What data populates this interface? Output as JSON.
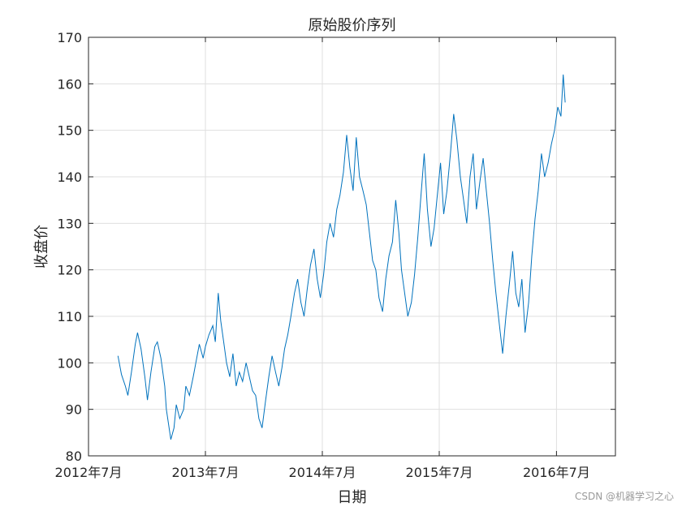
{
  "chart_data": {
    "type": "line",
    "title": "原始股价序列",
    "xlabel": "日期",
    "ylabel": "收盘价",
    "ylim": [
      80,
      170
    ],
    "yticks": [
      80,
      90,
      100,
      110,
      120,
      130,
      140,
      150,
      160,
      170
    ],
    "xticks": [
      {
        "label": "2012年7月",
        "date": "2012-07-01"
      },
      {
        "label": "2013年7月",
        "date": "2013-07-01"
      },
      {
        "label": "2014年7月",
        "date": "2014-07-01"
      },
      {
        "label": "2015年7月",
        "date": "2015-07-01"
      },
      {
        "label": "2016年7月",
        "date": "2016-07-01"
      }
    ],
    "xlim": [
      "2012-07-01",
      "2017-01-01"
    ],
    "grid": true,
    "color": "#0072BD",
    "series": [
      {
        "points": [
          [
            "2012-10-01",
            101.5
          ],
          [
            "2012-10-12",
            97.5
          ],
          [
            "2012-10-24",
            95.0
          ],
          [
            "2012-11-01",
            93.0
          ],
          [
            "2012-11-12",
            98.0
          ],
          [
            "2012-11-24",
            104.0
          ],
          [
            "2012-12-01",
            106.5
          ],
          [
            "2012-12-12",
            103.0
          ],
          [
            "2012-12-24",
            97.0
          ],
          [
            "2013-01-01",
            92.0
          ],
          [
            "2013-01-12",
            98.0
          ],
          [
            "2013-01-24",
            103.5
          ],
          [
            "2013-02-01",
            104.5
          ],
          [
            "2013-02-12",
            101.0
          ],
          [
            "2013-02-24",
            95.0
          ],
          [
            "2013-03-01",
            90.0
          ],
          [
            "2013-03-15",
            83.5
          ],
          [
            "2013-03-25",
            86.0
          ],
          [
            "2013-04-01",
            91.0
          ],
          [
            "2013-04-12",
            88.0
          ],
          [
            "2013-04-24",
            90.0
          ],
          [
            "2013-05-01",
            95.0
          ],
          [
            "2013-05-12",
            93.0
          ],
          [
            "2013-05-24",
            97.0
          ],
          [
            "2013-06-01",
            100.0
          ],
          [
            "2013-06-12",
            104.0
          ],
          [
            "2013-06-24",
            101.0
          ],
          [
            "2013-07-01",
            103.5
          ],
          [
            "2013-07-12",
            106.0
          ],
          [
            "2013-07-24",
            108.0
          ],
          [
            "2013-08-01",
            104.5
          ],
          [
            "2013-08-10",
            115.0
          ],
          [
            "2013-08-18",
            109.0
          ],
          [
            "2013-08-28",
            104.0
          ],
          [
            "2013-09-05",
            100.0
          ],
          [
            "2013-09-15",
            97.0
          ],
          [
            "2013-09-25",
            102.0
          ],
          [
            "2013-10-05",
            95.0
          ],
          [
            "2013-10-15",
            98.0
          ],
          [
            "2013-10-25",
            96.0
          ],
          [
            "2013-11-05",
            100.0
          ],
          [
            "2013-11-15",
            97.0
          ],
          [
            "2013-11-25",
            94.0
          ],
          [
            "2013-12-05",
            93.0
          ],
          [
            "2013-12-15",
            88.0
          ],
          [
            "2013-12-25",
            86.0
          ],
          [
            "2014-01-05",
            92.0
          ],
          [
            "2014-01-15",
            97.0
          ],
          [
            "2014-01-25",
            101.5
          ],
          [
            "2014-02-05",
            98.0
          ],
          [
            "2014-02-15",
            95.0
          ],
          [
            "2014-02-25",
            99.0
          ],
          [
            "2014-03-05",
            103.0
          ],
          [
            "2014-03-15",
            106.0
          ],
          [
            "2014-03-25",
            110.0
          ],
          [
            "2014-04-05",
            115.0
          ],
          [
            "2014-04-15",
            118.0
          ],
          [
            "2014-04-25",
            113.0
          ],
          [
            "2014-05-05",
            110.0
          ],
          [
            "2014-05-15",
            116.0
          ],
          [
            "2014-05-25",
            121.0
          ],
          [
            "2014-06-05",
            124.5
          ],
          [
            "2014-06-15",
            118.0
          ],
          [
            "2014-06-25",
            114.0
          ],
          [
            "2014-07-05",
            119.0
          ],
          [
            "2014-07-15",
            126.0
          ],
          [
            "2014-07-25",
            130.0
          ],
          [
            "2014-08-05",
            127.0
          ],
          [
            "2014-08-15",
            133.0
          ],
          [
            "2014-08-25",
            136.0
          ],
          [
            "2014-09-05",
            141.0
          ],
          [
            "2014-09-15",
            149.0
          ],
          [
            "2014-09-25",
            142.0
          ],
          [
            "2014-10-05",
            137.0
          ],
          [
            "2014-10-15",
            148.5
          ],
          [
            "2014-10-25",
            140.0
          ],
          [
            "2014-11-05",
            137.0
          ],
          [
            "2014-11-15",
            134.0
          ],
          [
            "2014-11-25",
            128.0
          ],
          [
            "2014-12-05",
            122.0
          ],
          [
            "2014-12-15",
            120.0
          ],
          [
            "2014-12-25",
            114.0
          ],
          [
            "2015-01-05",
            111.0
          ],
          [
            "2015-01-15",
            118.0
          ],
          [
            "2015-01-25",
            123.0
          ],
          [
            "2015-02-05",
            126.0
          ],
          [
            "2015-02-15",
            135.0
          ],
          [
            "2015-02-25",
            128.0
          ],
          [
            "2015-03-05",
            120.0
          ],
          [
            "2015-03-15",
            115.0
          ],
          [
            "2015-03-25",
            110.0
          ],
          [
            "2015-04-05",
            113.0
          ],
          [
            "2015-04-15",
            119.0
          ],
          [
            "2015-04-25",
            127.0
          ],
          [
            "2015-05-05",
            136.0
          ],
          [
            "2015-05-15",
            145.0
          ],
          [
            "2015-05-25",
            133.0
          ],
          [
            "2015-06-05",
            125.0
          ],
          [
            "2015-06-15",
            129.0
          ],
          [
            "2015-06-25",
            136.0
          ],
          [
            "2015-07-05",
            143.0
          ],
          [
            "2015-07-15",
            132.0
          ],
          [
            "2015-07-25",
            137.0
          ],
          [
            "2015-08-05",
            145.0
          ],
          [
            "2015-08-15",
            153.5
          ],
          [
            "2015-08-25",
            148.0
          ],
          [
            "2015-09-05",
            140.0
          ],
          [
            "2015-09-15",
            135.0
          ],
          [
            "2015-09-25",
            130.0
          ],
          [
            "2015-10-05",
            140.0
          ],
          [
            "2015-10-15",
            145.0
          ],
          [
            "2015-10-25",
            133.0
          ],
          [
            "2015-11-05",
            139.0
          ],
          [
            "2015-11-15",
            144.0
          ],
          [
            "2015-11-25",
            137.0
          ],
          [
            "2015-12-05",
            130.0
          ],
          [
            "2015-12-15",
            122.0
          ],
          [
            "2015-12-25",
            115.0
          ],
          [
            "2016-01-05",
            108.0
          ],
          [
            "2016-01-15",
            102.0
          ],
          [
            "2016-01-25",
            110.0
          ],
          [
            "2016-02-05",
            117.0
          ],
          [
            "2016-02-15",
            124.0
          ],
          [
            "2016-02-25",
            115.0
          ],
          [
            "2016-03-05",
            112.0
          ],
          [
            "2016-03-15",
            118.0
          ],
          [
            "2016-03-25",
            106.5
          ],
          [
            "2016-04-05",
            113.0
          ],
          [
            "2016-04-15",
            123.0
          ],
          [
            "2016-04-25",
            131.0
          ],
          [
            "2016-05-05",
            137.0
          ],
          [
            "2016-05-15",
            145.0
          ],
          [
            "2016-05-25",
            140.0
          ],
          [
            "2016-06-05",
            143.0
          ],
          [
            "2016-06-15",
            147.0
          ],
          [
            "2016-06-25",
            150.0
          ],
          [
            "2016-07-05",
            155.0
          ],
          [
            "2016-07-15",
            153.0
          ],
          [
            "2016-07-22",
            162.0
          ],
          [
            "2016-07-28",
            156.0
          ]
        ]
      }
    ]
  },
  "watermark": "CSDN @机器学习之心"
}
